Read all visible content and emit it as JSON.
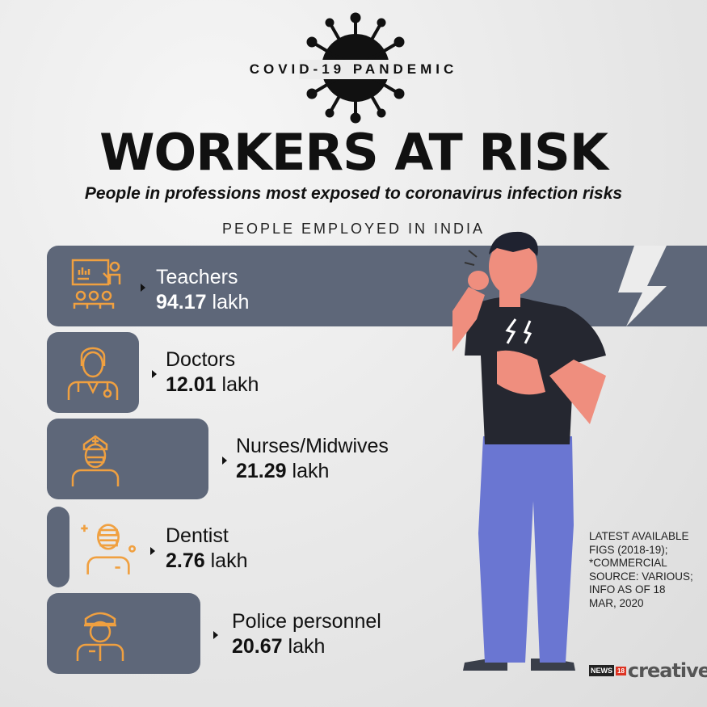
{
  "header": {
    "kicker": "COVID-19 PANDEMIC",
    "title": "WORKERS AT RISK",
    "subtitle": "People in professions most exposed to coronavirus infection risks",
    "section": "PEOPLE EMPLOYED IN INDIA"
  },
  "chart_data": {
    "type": "bar",
    "title": "PEOPLE EMPLOYED IN INDIA",
    "unit": "lakh",
    "categories": [
      "Teachers",
      "Doctors",
      "Nurses/Midwives",
      "Dentist",
      "Police personnel"
    ],
    "values": [
      94.17,
      12.01,
      21.29,
      2.76,
      20.67
    ],
    "value_labels": [
      "94.17",
      "12.01",
      "21.29",
      "2.76",
      "20.67"
    ],
    "unit_label": "lakh",
    "icons": [
      "teacher-icon",
      "doctor-icon",
      "nurse-icon",
      "dentist-icon",
      "police-icon"
    ],
    "colors": {
      "bar": "#5e6779",
      "icon": "#f0a040"
    }
  },
  "footer": {
    "note": "LATEST AVAILABLE FIGS (2018-19); *COMMERCIAL SOURCE: VARIOUS; INFO AS OF 18 MAR, 2020",
    "logo_news": "NEWS",
    "logo_18": "18",
    "logo_creative": "creative"
  }
}
